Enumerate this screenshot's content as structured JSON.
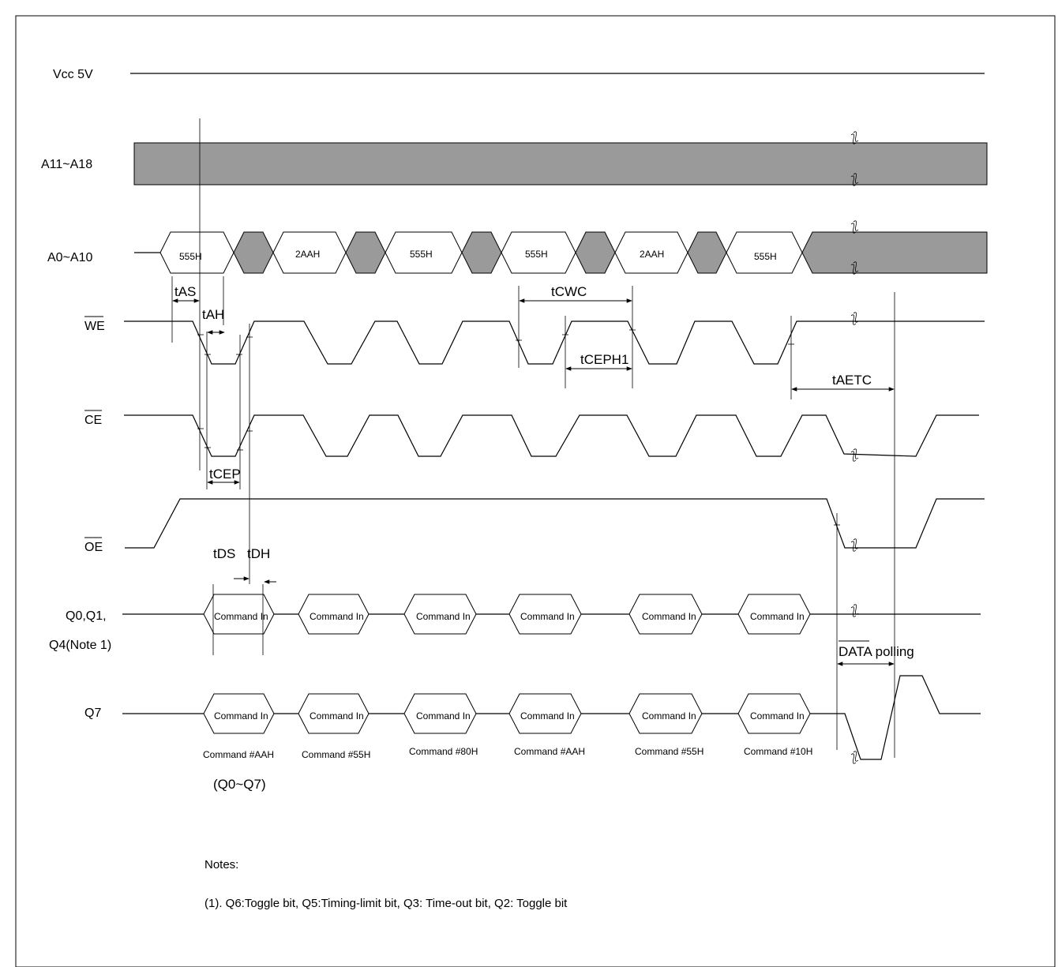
{
  "signals": {
    "vcc": "Vcc 5V",
    "a11_a18": "A11~A18",
    "a0_a10": "A0~A10",
    "we": "WE",
    "ce": "CE",
    "oe": "OE",
    "q0q1_line1": "Q0,Q1,",
    "q0q1_line2": "Q4(Note 1)",
    "q7": "Q7"
  },
  "address_values": [
    "555H",
    "2AAH",
    "555H",
    "555H",
    "2AAH",
    "555H"
  ],
  "data_label": "Command In",
  "command_captions": [
    "Command #AAH",
    "Command #55H",
    "Command #80H",
    "Command #AAH",
    "Command #55H",
    "Command #10H"
  ],
  "command_subcaption": "(Q0~Q7)",
  "timing": {
    "tAS": "tAS",
    "tAH": "tAH",
    "tCWC": "tCWC",
    "tCEPH1": "tCEPH1",
    "tAETC": "tAETC",
    "tCEP": "tCEP",
    "tDS": "tDS",
    "tDH": "tDH",
    "data_polling_bar": "DATA",
    "data_polling_rest": " polling"
  },
  "notes": {
    "title": "Notes:",
    "line1": "(1). Q6:Toggle bit, Q5:Timing-limit bit, Q3: Time-out bit, Q2: Toggle bit"
  },
  "colors": {
    "bus_fill": "#9a9a9a",
    "line": "#000000"
  }
}
